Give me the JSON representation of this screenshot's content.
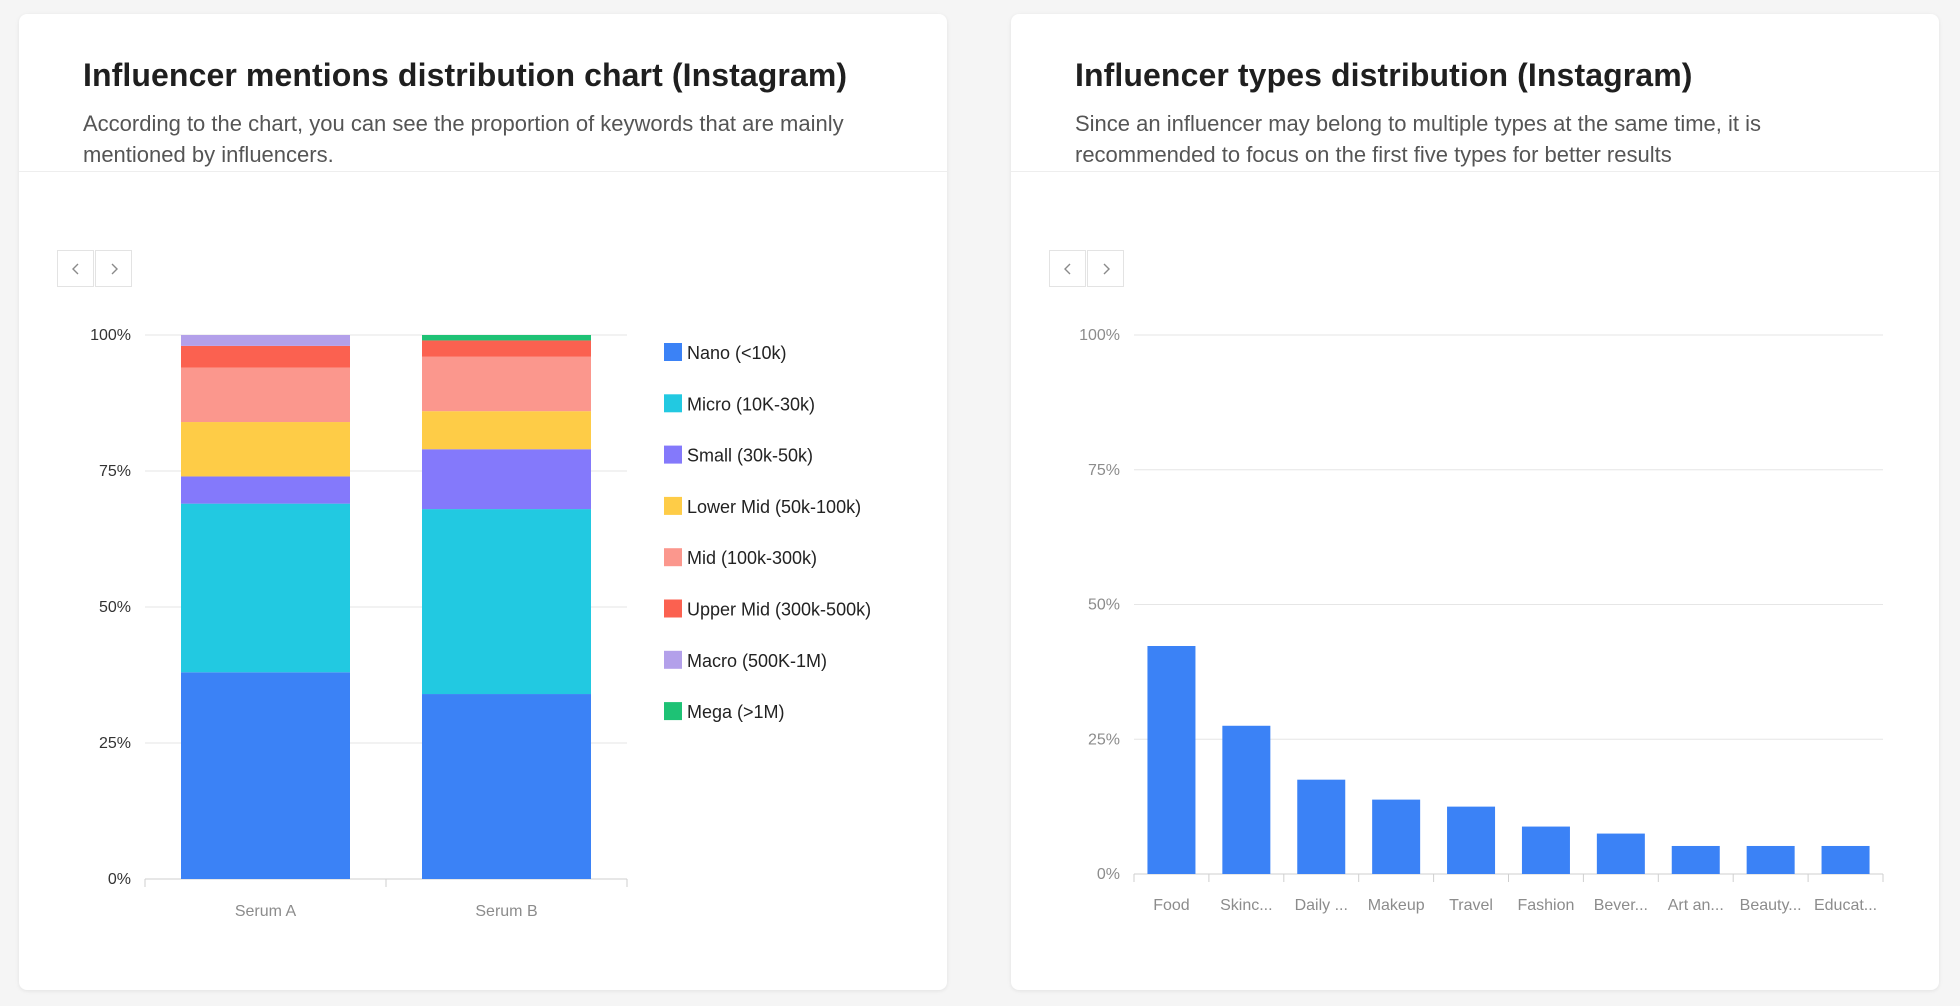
{
  "cards": [
    {
      "title": "Influencer mentions distribution chart (Instagram)",
      "description": "According to the chart, you can see the proportion of keywords that are mainly mentioned by influencers."
    },
    {
      "title": "Influencer types distribution (Instagram)",
      "description": "Since an influencer may belong to multiple types at the same time, it is recommended to focus on the first five types for better results"
    }
  ],
  "pager": {
    "prev_icon": "chevron-left-icon",
    "next_icon": "chevron-right-icon"
  },
  "chart_data": [
    {
      "type": "bar",
      "stacked": true,
      "categories": [
        "Serum A",
        "Serum B"
      ],
      "yticks": [
        "0%",
        "25%",
        "50%",
        "75%",
        "100%"
      ],
      "ylim": [
        0,
        100
      ],
      "legend_position": "right",
      "series": [
        {
          "name": "Nano (<10k)",
          "color": "#3b82f6",
          "values": [
            38,
            34
          ]
        },
        {
          "name": "Micro (10K-30k)",
          "color": "#22c9e1",
          "values": [
            31,
            34
          ]
        },
        {
          "name": "Small (30k-50k)",
          "color": "#8479fb",
          "values": [
            5,
            11
          ]
        },
        {
          "name": "Lower Mid (50k-100k)",
          "color": "#fecc47",
          "values": [
            10,
            7
          ]
        },
        {
          "name": "Mid (100k-300k)",
          "color": "#fb978d",
          "values": [
            10,
            10
          ]
        },
        {
          "name": "Upper Mid (300k-500k)",
          "color": "#fb6150",
          "values": [
            4,
            3
          ]
        },
        {
          "name": "Macro (500K-1M)",
          "color": "#b3a0ea",
          "values": [
            2,
            0
          ]
        },
        {
          "name": "Mega (>1M)",
          "color": "#1ec275",
          "values": [
            0,
            1
          ]
        }
      ]
    },
    {
      "type": "bar",
      "categories": [
        "Food",
        "Skinc...",
        "Daily ...",
        "Makeup",
        "Travel",
        "Fashion",
        "Bever...",
        "Art an...",
        "Beauty...",
        "Educat..."
      ],
      "values": [
        42.3,
        27.5,
        17.5,
        13.8,
        12.5,
        8.8,
        7.5,
        5.2,
        5.2,
        5.2
      ],
      "yticks": [
        "0%",
        "25%",
        "50%",
        "75%",
        "100%"
      ],
      "ylim": [
        0,
        100
      ],
      "color": "#3b82f6"
    }
  ]
}
